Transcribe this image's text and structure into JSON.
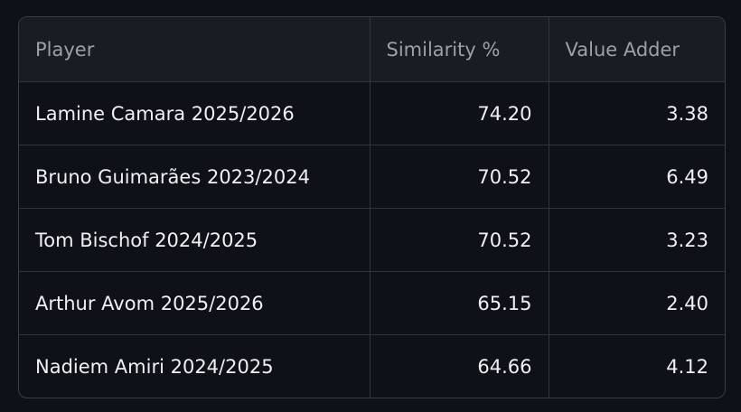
{
  "table": {
    "columns": [
      "Player",
      "Similarity %",
      "Value Adder"
    ],
    "rows": [
      [
        "Lamine Camara 2025/2026",
        "74.20",
        "3.38"
      ],
      [
        "Bruno Guimarães 2023/2024",
        "70.52",
        "6.49"
      ],
      [
        "Tom Bischof 2024/2025",
        "70.52",
        "3.23"
      ],
      [
        "Arthur Avom 2025/2026",
        "65.15",
        "2.40"
      ],
      [
        "Nadiem Amiri 2024/2025",
        "64.66",
        "4.12"
      ]
    ]
  }
}
